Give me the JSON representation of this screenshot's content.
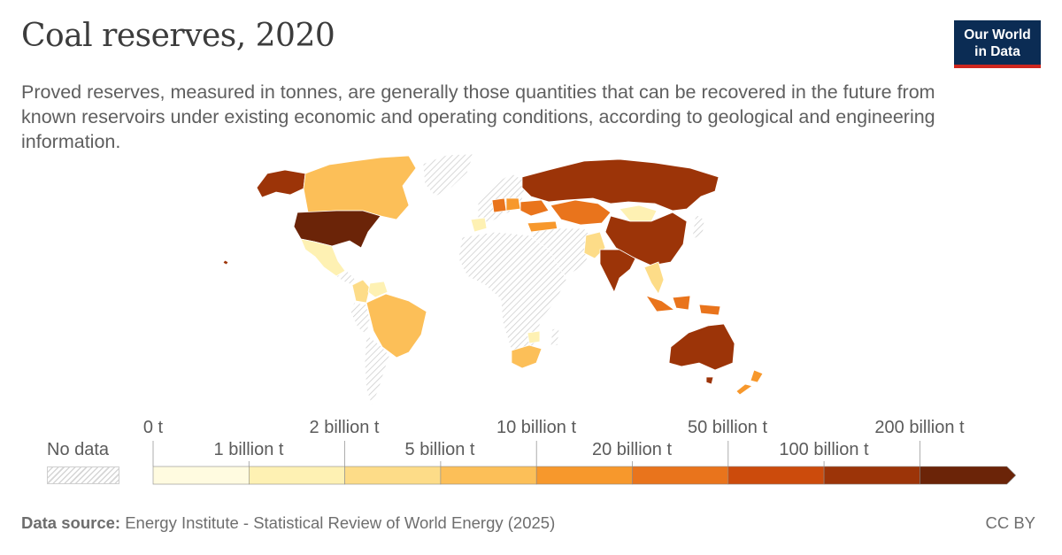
{
  "header": {
    "title": "Coal reserves, 2020",
    "subtitle": "Proved reserves, measured in tonnes, are generally those quantities that can be recovered in the future from known reservoirs under existing economic and operating conditions, according to geological and engineering information."
  },
  "logo": {
    "line1": "Our World",
    "line2": "in Data",
    "bg_color": "#0b2c54",
    "accent_color": "#ce261e"
  },
  "legend": {
    "no_data_label": "No data",
    "upper_labels": [
      "0 t",
      "2 billion t",
      "10 billion t",
      "50 billion t",
      "200 billion t"
    ],
    "lower_labels": [
      "1 billion t",
      "5 billion t",
      "20 billion t",
      "100 billion t"
    ],
    "bins": [
      {
        "from": "0 t",
        "to": "1 billion t",
        "color": "#fffbe0"
      },
      {
        "from": "1 billion t",
        "to": "2 billion t",
        "color": "#fef1b3"
      },
      {
        "from": "2 billion t",
        "to": "5 billion t",
        "color": "#fddc88"
      },
      {
        "from": "5 billion t",
        "to": "10 billion t",
        "color": "#fcbf58"
      },
      {
        "from": "10 billion t",
        "to": "20 billion t",
        "color": "#f7982c"
      },
      {
        "from": "20 billion t",
        "to": "50 billion t",
        "color": "#e9741c"
      },
      {
        "from": "50 billion t",
        "to": "100 billion t",
        "color": "#cc4b0c"
      },
      {
        "from": "100 billion t",
        "to": "200 billion t",
        "color": "#9c3408"
      },
      {
        "from": "200 billion t",
        "to": "",
        "color": "#6b2408"
      }
    ]
  },
  "map": {
    "no_data_color": "#d9d9d9",
    "regions": [
      {
        "name": "Alaska",
        "color": "#9c3408"
      },
      {
        "name": "Canada",
        "color": "#fcbf58"
      },
      {
        "name": "United States",
        "color": "#6b2408"
      },
      {
        "name": "Greenland",
        "color": "no-data"
      },
      {
        "name": "Mexico",
        "color": "#fef1b3"
      },
      {
        "name": "Colombia",
        "color": "#fddc88"
      },
      {
        "name": "Venezuela",
        "color": "#fef1b3"
      },
      {
        "name": "Brazil",
        "color": "#fcbf58"
      },
      {
        "name": "Argentina",
        "color": "no-data"
      },
      {
        "name": "Russia",
        "color": "#9c3408"
      },
      {
        "name": "Kazakhstan",
        "color": "#e9741c"
      },
      {
        "name": "Mongolia",
        "color": "#fef1b3"
      },
      {
        "name": "China",
        "color": "#9c3408"
      },
      {
        "name": "India",
        "color": "#9c3408"
      },
      {
        "name": "Indonesia",
        "color": "#e9741c"
      },
      {
        "name": "Australia",
        "color": "#9c3408"
      },
      {
        "name": "New Zealand",
        "color": "#f7982c"
      },
      {
        "name": "South Africa",
        "color": "#fcbf58"
      },
      {
        "name": "Zimbabwe",
        "color": "#fef1b3"
      },
      {
        "name": "Ukraine",
        "color": "#e9741c"
      },
      {
        "name": "Poland",
        "color": "#f7982c"
      },
      {
        "name": "Germany",
        "color": "#e9741c"
      },
      {
        "name": "Turkey",
        "color": "#f7982c"
      },
      {
        "name": "Spain",
        "color": "#fef1b3"
      },
      {
        "name": "Pakistan",
        "color": "#fddc88"
      },
      {
        "name": "Vietnam",
        "color": "#fddc88"
      },
      {
        "name": "Africa (rest)",
        "color": "no-data"
      }
    ]
  },
  "footer": {
    "source_label": "Data source:",
    "source_text": "Energy Institute - Statistical Review of World Energy (2025)",
    "license": "CC BY"
  }
}
